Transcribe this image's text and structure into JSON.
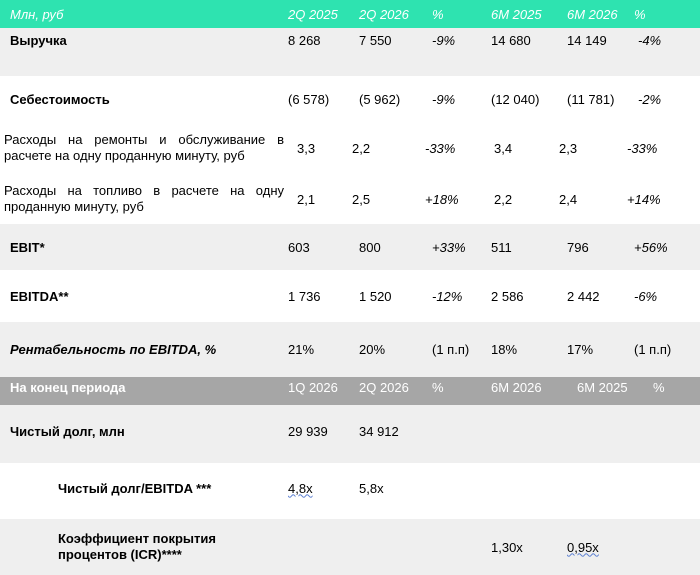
{
  "header1": {
    "label": "Млн, руб",
    "cols": [
      "2Q 2025",
      "2Q 2026",
      "%",
      "6M 2025",
      "6M 2026",
      "%"
    ]
  },
  "rows1": [
    {
      "label": "Выручка",
      "values": [
        "8 268",
        "7 550",
        "-9%",
        "14 680",
        "14 149",
        "-4%"
      ]
    },
    {
      "label": "Себестоимость",
      "values": [
        "(6 578)",
        "(5 962)",
        "-9%",
        "(12 040)",
        "(11 781)",
        "-2%"
      ]
    },
    {
      "label": "Расходы на ремонты и обслуживание в расчете на одну проданную минуту, руб",
      "values": [
        "3,3",
        "2,2",
        "-33%",
        "3,4",
        "2,3",
        "-33%"
      ]
    },
    {
      "label": "Расходы на топливо в расчете на одну проданную минуту, руб",
      "values": [
        "2,1",
        "2,5",
        "+18%",
        "2,2",
        "2,4",
        "+14%"
      ]
    },
    {
      "label": "EBIT*",
      "values": [
        "603",
        "800",
        "+33%",
        "511",
        "796",
        "+56%"
      ]
    },
    {
      "label": "EBITDA**",
      "values": [
        "1 736",
        "1 520",
        "-12%",
        "2 586",
        "2 442",
        "-6%"
      ]
    },
    {
      "label": "Рентабельность по EBITDA, %",
      "values": [
        "21%",
        "20%",
        "(1 п.п)",
        "18%",
        "17%",
        "(1 п.п)"
      ]
    }
  ],
  "header2": {
    "label": "На конец периода",
    "cols": [
      "1Q 2026",
      "2Q 2026",
      "%",
      "6M 2026",
      "6M 2025",
      "%"
    ]
  },
  "rows2": [
    {
      "label": "Чистый долг, млн",
      "values": [
        "29 939",
        "34 912"
      ]
    },
    {
      "label": "Чистый долг/EBITDA ***",
      "values": [
        "4,8x",
        "5,8x"
      ]
    },
    {
      "label": "Коэффициент покрытия процентов (ICR)****",
      "values": [
        "1,30x",
        "0,95x"
      ]
    }
  ]
}
